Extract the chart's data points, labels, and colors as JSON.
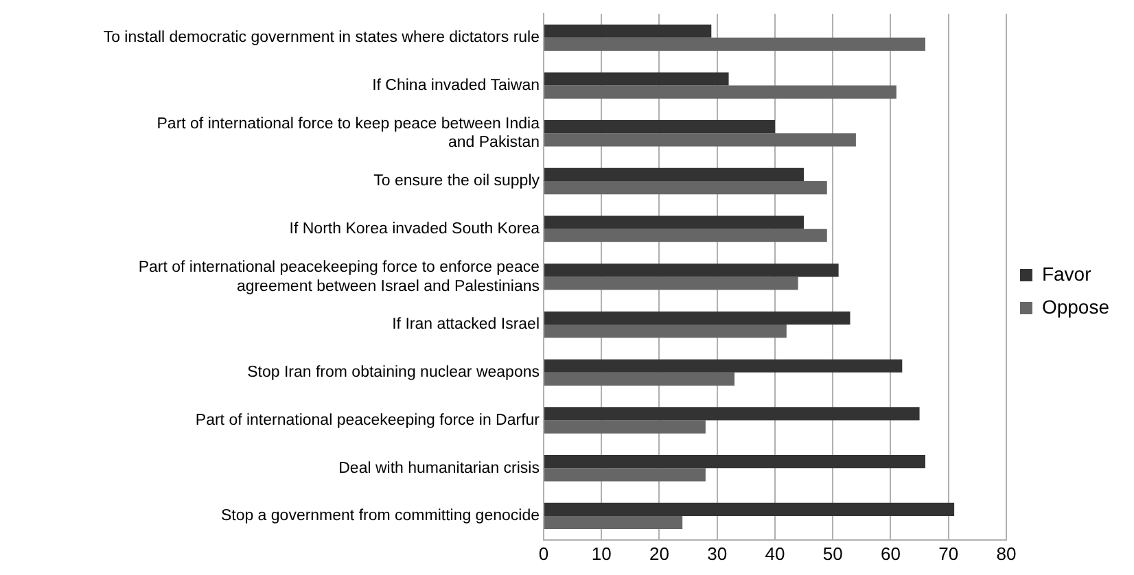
{
  "chart_data": {
    "type": "bar",
    "orientation": "horizontal",
    "categories": [
      "To install democratic government in states where dictators rule",
      "If China invaded Taiwan",
      "Part of international force to keep peace between India and Pakistan",
      "To ensure the oil supply",
      "If North Korea invaded South Korea",
      "Part of international peacekeeping force to enforce peace agreement between Israel and Palestinians",
      "If Iran attacked Israel",
      "Stop Iran from obtaining nuclear weapons",
      "Part of international peacekeeping force in Darfur",
      "Deal with humanitarian crisis",
      "Stop a government from committing genocide"
    ],
    "series": [
      {
        "name": "Favor",
        "color": "#333333",
        "values": [
          29,
          32,
          40,
          45,
          45,
          51,
          53,
          62,
          65,
          66,
          71
        ]
      },
      {
        "name": "Oppose",
        "color": "#666666",
        "values": [
          66,
          61,
          54,
          49,
          49,
          44,
          42,
          33,
          28,
          28,
          24
        ]
      }
    ],
    "xlim": [
      0,
      80
    ],
    "xticks": [
      0,
      10,
      20,
      30,
      40,
      50,
      60,
      70,
      80
    ],
    "grid": "x",
    "legend": "right"
  }
}
